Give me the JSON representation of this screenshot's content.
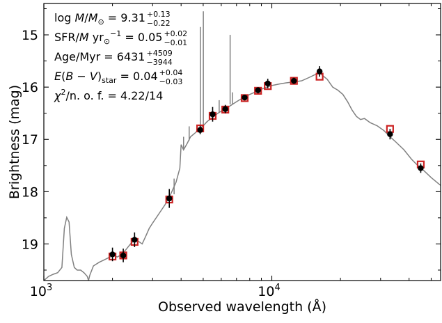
{
  "chart_data": {
    "type": "scatter",
    "xlabel": "Observed wavelength (Å)",
    "ylabel": "Brightness (mag)",
    "xscale": "log",
    "xlim": [
      1000,
      55000
    ],
    "ylim": [
      19.7,
      14.4
    ],
    "y_inverted": true,
    "y_ticks": [
      15,
      16,
      17,
      18,
      19
    ],
    "y_tick_labels": [
      "15",
      "16",
      "17",
      "18",
      "19"
    ],
    "x_ticks": [
      1000,
      10000
    ],
    "x_tick_base": "10",
    "x_tick_exps": [
      "3",
      "4"
    ],
    "annotations": [
      {
        "pre": "log ",
        "var": "M",
        "mid": "/",
        "var2": "M",
        "sub": "⊙",
        "eq": " = 9.31",
        "sup": "+0.13",
        "low": "−0.22"
      },
      {
        "pre": "SFR/",
        "var": "M",
        "sub": "⊙",
        "mid": " yr",
        "supx": "−1",
        "eq": " = 0.05",
        "sup": "+0.02",
        "low": "−0.01"
      },
      {
        "pre": "Age/Myr = 6431",
        "sup": "+4509",
        "low": "−3944"
      },
      {
        "var": "E",
        "mid": "(",
        "var2": "B",
        "mid2": " − ",
        "var3": "V",
        "mid3": ")",
        "sub": "star",
        "eq": " = 0.04",
        "sup": "+0.04",
        "low": "−0.03"
      },
      {
        "var": "χ",
        "supx": "2",
        "eq": "/n. o. f.  = 4.22/14"
      }
    ],
    "model_spectrum": {
      "color": "#808080",
      "points": [
        [
          1000,
          19.7
        ],
        [
          1050,
          19.62
        ],
        [
          1100,
          19.58
        ],
        [
          1150,
          19.55
        ],
        [
          1200,
          19.45
        ],
        [
          1230,
          18.7
        ],
        [
          1260,
          18.49
        ],
        [
          1290,
          18.58
        ],
        [
          1320,
          19.2
        ],
        [
          1360,
          19.45
        ],
        [
          1400,
          19.5
        ],
        [
          1450,
          19.5
        ],
        [
          1500,
          19.55
        ],
        [
          1550,
          19.62
        ],
        [
          1570,
          19.7
        ],
        [
          1590,
          19.6
        ],
        [
          1650,
          19.42
        ],
        [
          1750,
          19.35
        ],
        [
          1850,
          19.3
        ],
        [
          1950,
          19.25
        ],
        [
          2000,
          19.22
        ],
        [
          2100,
          19.25
        ],
        [
          2200,
          19.2
        ],
        [
          2300,
          19.1
        ],
        [
          2400,
          19.0
        ],
        [
          2500,
          18.92
        ],
        [
          2600,
          18.95
        ],
        [
          2700,
          19.0
        ],
        [
          2800,
          18.85
        ],
        [
          2900,
          18.7
        ],
        [
          3000,
          18.6
        ],
        [
          3200,
          18.42
        ],
        [
          3400,
          18.25
        ],
        [
          3600,
          18.05
        ],
        [
          3800,
          17.82
        ],
        [
          3950,
          17.55
        ],
        [
          4000,
          17.1
        ],
        [
          4100,
          17.2
        ],
        [
          4250,
          17.08
        ],
        [
          4400,
          16.95
        ],
        [
          4600,
          16.88
        ],
        [
          4800,
          16.8
        ],
        [
          5000,
          16.74
        ],
        [
          5200,
          16.66
        ],
        [
          5500,
          16.58
        ],
        [
          5800,
          16.5
        ],
        [
          6100,
          16.44
        ],
        [
          6500,
          16.37
        ],
        [
          7000,
          16.28
        ],
        [
          7500,
          16.2
        ],
        [
          8000,
          16.14
        ],
        [
          8500,
          16.09
        ],
        [
          9000,
          16.04
        ],
        [
          9500,
          16.0
        ],
        [
          10000,
          15.97
        ],
        [
          10800,
          15.94
        ],
        [
          11500,
          15.92
        ],
        [
          12500,
          15.9
        ],
        [
          13500,
          15.88
        ],
        [
          14500,
          15.82
        ],
        [
          15500,
          15.76
        ],
        [
          16300,
          15.74
        ],
        [
          17500,
          15.85
        ],
        [
          18500,
          16.0
        ],
        [
          19500,
          16.06
        ],
        [
          20500,
          16.14
        ],
        [
          21500,
          16.28
        ],
        [
          22500,
          16.44
        ],
        [
          23500,
          16.56
        ],
        [
          24500,
          16.62
        ],
        [
          25500,
          16.6
        ],
        [
          27000,
          16.68
        ],
        [
          29000,
          16.74
        ],
        [
          31000,
          16.83
        ],
        [
          33000,
          16.95
        ],
        [
          35000,
          17.05
        ],
        [
          38000,
          17.2
        ],
        [
          41000,
          17.38
        ],
        [
          43000,
          17.47
        ],
        [
          46000,
          17.58
        ],
        [
          50000,
          17.73
        ],
        [
          55000,
          17.88
        ]
      ],
      "emission_lines": [
        [
          3727,
          18.05,
          17.75
        ],
        [
          4102,
          17.2,
          16.95
        ],
        [
          4340,
          17.02,
          16.75
        ],
        [
          4861,
          16.78,
          14.85
        ],
        [
          5007,
          16.72,
          14.55
        ],
        [
          5876,
          16.48,
          16.25
        ],
        [
          6563,
          16.33,
          15.0
        ],
        [
          6717,
          16.32,
          16.1
        ]
      ]
    },
    "series": [
      {
        "name": "",
        "kind": "model_photometry",
        "color": "#cc2222",
        "x": [
          2000,
          2230,
          2500,
          3550,
          4850,
          5500,
          6250,
          7600,
          8700,
          9600,
          12500,
          16200,
          33000,
          45000
        ],
        "y": [
          19.24,
          19.22,
          18.96,
          18.15,
          16.79,
          16.55,
          16.43,
          16.21,
          16.07,
          15.98,
          15.88,
          15.8,
          16.8,
          17.48
        ]
      },
      {
        "name": "",
        "kind": "observed_photometry",
        "color": "#000000",
        "x": [
          2000,
          2230,
          2500,
          3550,
          4850,
          5500,
          6250,
          7600,
          8700,
          9600,
          12500,
          16200,
          33000,
          45000
        ],
        "y": [
          19.2,
          19.22,
          18.92,
          18.13,
          16.82,
          16.52,
          16.42,
          16.2,
          16.06,
          15.93,
          15.88,
          15.7,
          16.9,
          17.55
        ],
        "yerr": [
          0.13,
          0.13,
          0.14,
          0.18,
          0.08,
          0.14,
          0.08,
          0.05,
          0.06,
          0.09,
          0.06,
          0.1,
          0.1,
          0.09
        ]
      }
    ]
  }
}
